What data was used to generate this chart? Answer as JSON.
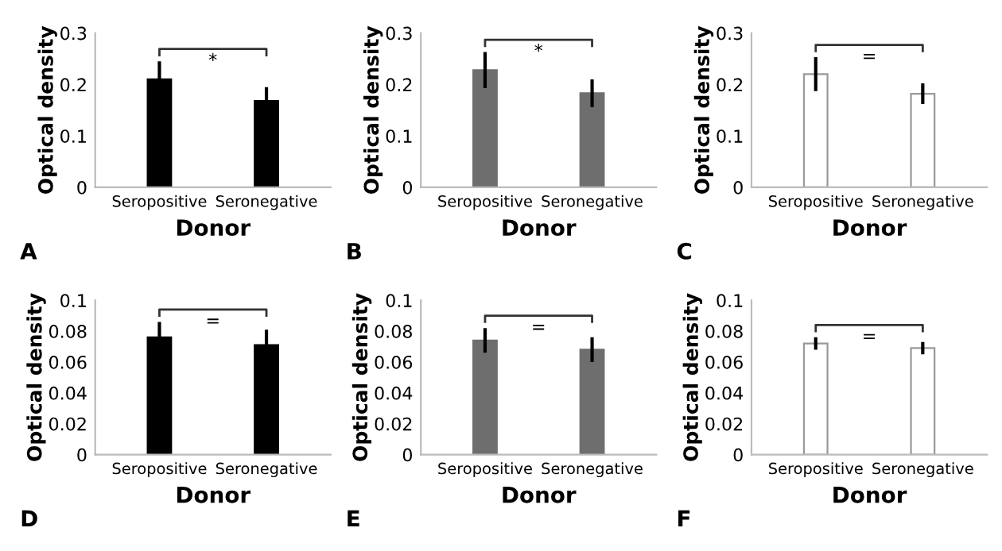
{
  "chart_data": [
    {
      "type": "bar",
      "xlabel": "Donor",
      "ylabel": "Optical density",
      "categories": [
        "Seropositive",
        "Seronegative"
      ],
      "series": [
        {
          "color": "#000000",
          "values": [
            0.21,
            0.168
          ],
          "errors": [
            0.035,
            0.027
          ]
        }
      ],
      "ylim": [
        0,
        0.3
      ],
      "yticks": [
        0,
        0.1,
        0.2,
        0.3
      ],
      "grid": false,
      "annotations": [
        "A",
        "*"
      ]
    },
    {
      "type": "bar",
      "xlabel": "Donor",
      "ylabel": "Optical density",
      "categories": [
        "Seropositive",
        "Seronegative"
      ],
      "series": [
        {
          "color": "#6e6e6e",
          "values": [
            0.228,
            0.183
          ],
          "errors": [
            0.035,
            0.027
          ]
        }
      ],
      "ylim": [
        0,
        0.3
      ],
      "yticks": [
        0,
        0.1,
        0.2,
        0.3
      ],
      "grid": false,
      "annotations": [
        "B",
        "*"
      ]
    },
    {
      "type": "bar",
      "xlabel": "Donor",
      "ylabel": "Optical density",
      "categories": [
        "Seropositive",
        "Seronegative"
      ],
      "series": [
        {
          "color": "#ffffff",
          "values": [
            0.22,
            0.182
          ],
          "errors": [
            0.033,
            0.02
          ]
        }
      ],
      "ylim": [
        0,
        0.3
      ],
      "yticks": [
        0,
        0.1,
        0.2,
        0.3
      ],
      "grid": false,
      "annotations": [
        "C",
        "="
      ]
    },
    {
      "type": "bar",
      "xlabel": "Donor",
      "ylabel": "Optical density",
      "categories": [
        "Seropositive",
        "Seronegative"
      ],
      "series": [
        {
          "color": "#000000",
          "values": [
            0.076,
            0.071
          ],
          "errors": [
            0.01,
            0.01
          ]
        }
      ],
      "ylim": [
        0,
        0.1
      ],
      "yticks": [
        0,
        0.02,
        0.04,
        0.06,
        0.08,
        0.1
      ],
      "grid": false,
      "annotations": [
        "D",
        "="
      ]
    },
    {
      "type": "bar",
      "xlabel": "Donor",
      "ylabel": "Optical density",
      "categories": [
        "Seropositive",
        "Seronegative"
      ],
      "series": [
        {
          "color": "#6e6e6e",
          "values": [
            0.074,
            0.068
          ],
          "errors": [
            0.008,
            0.008
          ]
        }
      ],
      "ylim": [
        0,
        0.1
      ],
      "yticks": [
        0,
        0.02,
        0.04,
        0.06,
        0.08,
        0.1
      ],
      "grid": false,
      "annotations": [
        "E",
        "="
      ]
    },
    {
      "type": "bar",
      "xlabel": "Donor",
      "ylabel": "Optical density",
      "categories": [
        "Seropositive",
        "Seronegative"
      ],
      "series": [
        {
          "color": "#ffffff",
          "values": [
            0.072,
            0.069
          ],
          "errors": [
            0.004,
            0.004
          ]
        }
      ],
      "ylim": [
        0,
        0.1
      ],
      "yticks": [
        0,
        0.02,
        0.04,
        0.06,
        0.08,
        0.1
      ],
      "grid": false,
      "annotations": [
        "F",
        "="
      ]
    }
  ]
}
